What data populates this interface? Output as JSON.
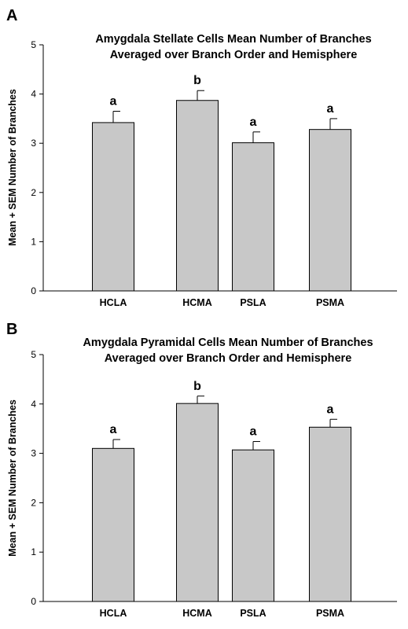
{
  "chart_data": [
    {
      "type": "bar",
      "panel": "A",
      "title_lines": [
        "Amygdala Stellate Cells Mean Number of Branches",
        "Averaged over Branch Order and Hemisphere"
      ],
      "ylabel": "Mean + SEM Number of Branches",
      "xlabel": "",
      "ylim": [
        0,
        5
      ],
      "yticks": [
        "0",
        "1",
        "2",
        "3",
        "4",
        "5"
      ],
      "categories": [
        "HCLA",
        "HCMA",
        "PSLA",
        "PSMA"
      ],
      "values": [
        3.42,
        3.87,
        3.01,
        3.28
      ],
      "errors": [
        0.23,
        0.2,
        0.22,
        0.22
      ],
      "labels": [
        "a",
        "b",
        "a",
        "a"
      ],
      "bar_color": "#c8c8c8",
      "grid": false
    },
    {
      "type": "bar",
      "panel": "B",
      "title_lines": [
        "Amygdala Pyramidal Cells Mean Number of Branches",
        "Averaged over Branch Order and Hemisphere"
      ],
      "ylabel": "Mean + SEM Number of Branches",
      "xlabel": "",
      "ylim": [
        0,
        5
      ],
      "yticks": [
        "0",
        "1",
        "2",
        "3",
        "4",
        "5"
      ],
      "categories": [
        "HCLA",
        "HCMA",
        "PSLA",
        "PSMA"
      ],
      "values": [
        3.1,
        4.01,
        3.07,
        3.53
      ],
      "errors": [
        0.18,
        0.15,
        0.17,
        0.16
      ],
      "labels": [
        "a",
        "b",
        "a",
        "a"
      ],
      "bar_color": "#c8c8c8",
      "grid": false
    }
  ]
}
